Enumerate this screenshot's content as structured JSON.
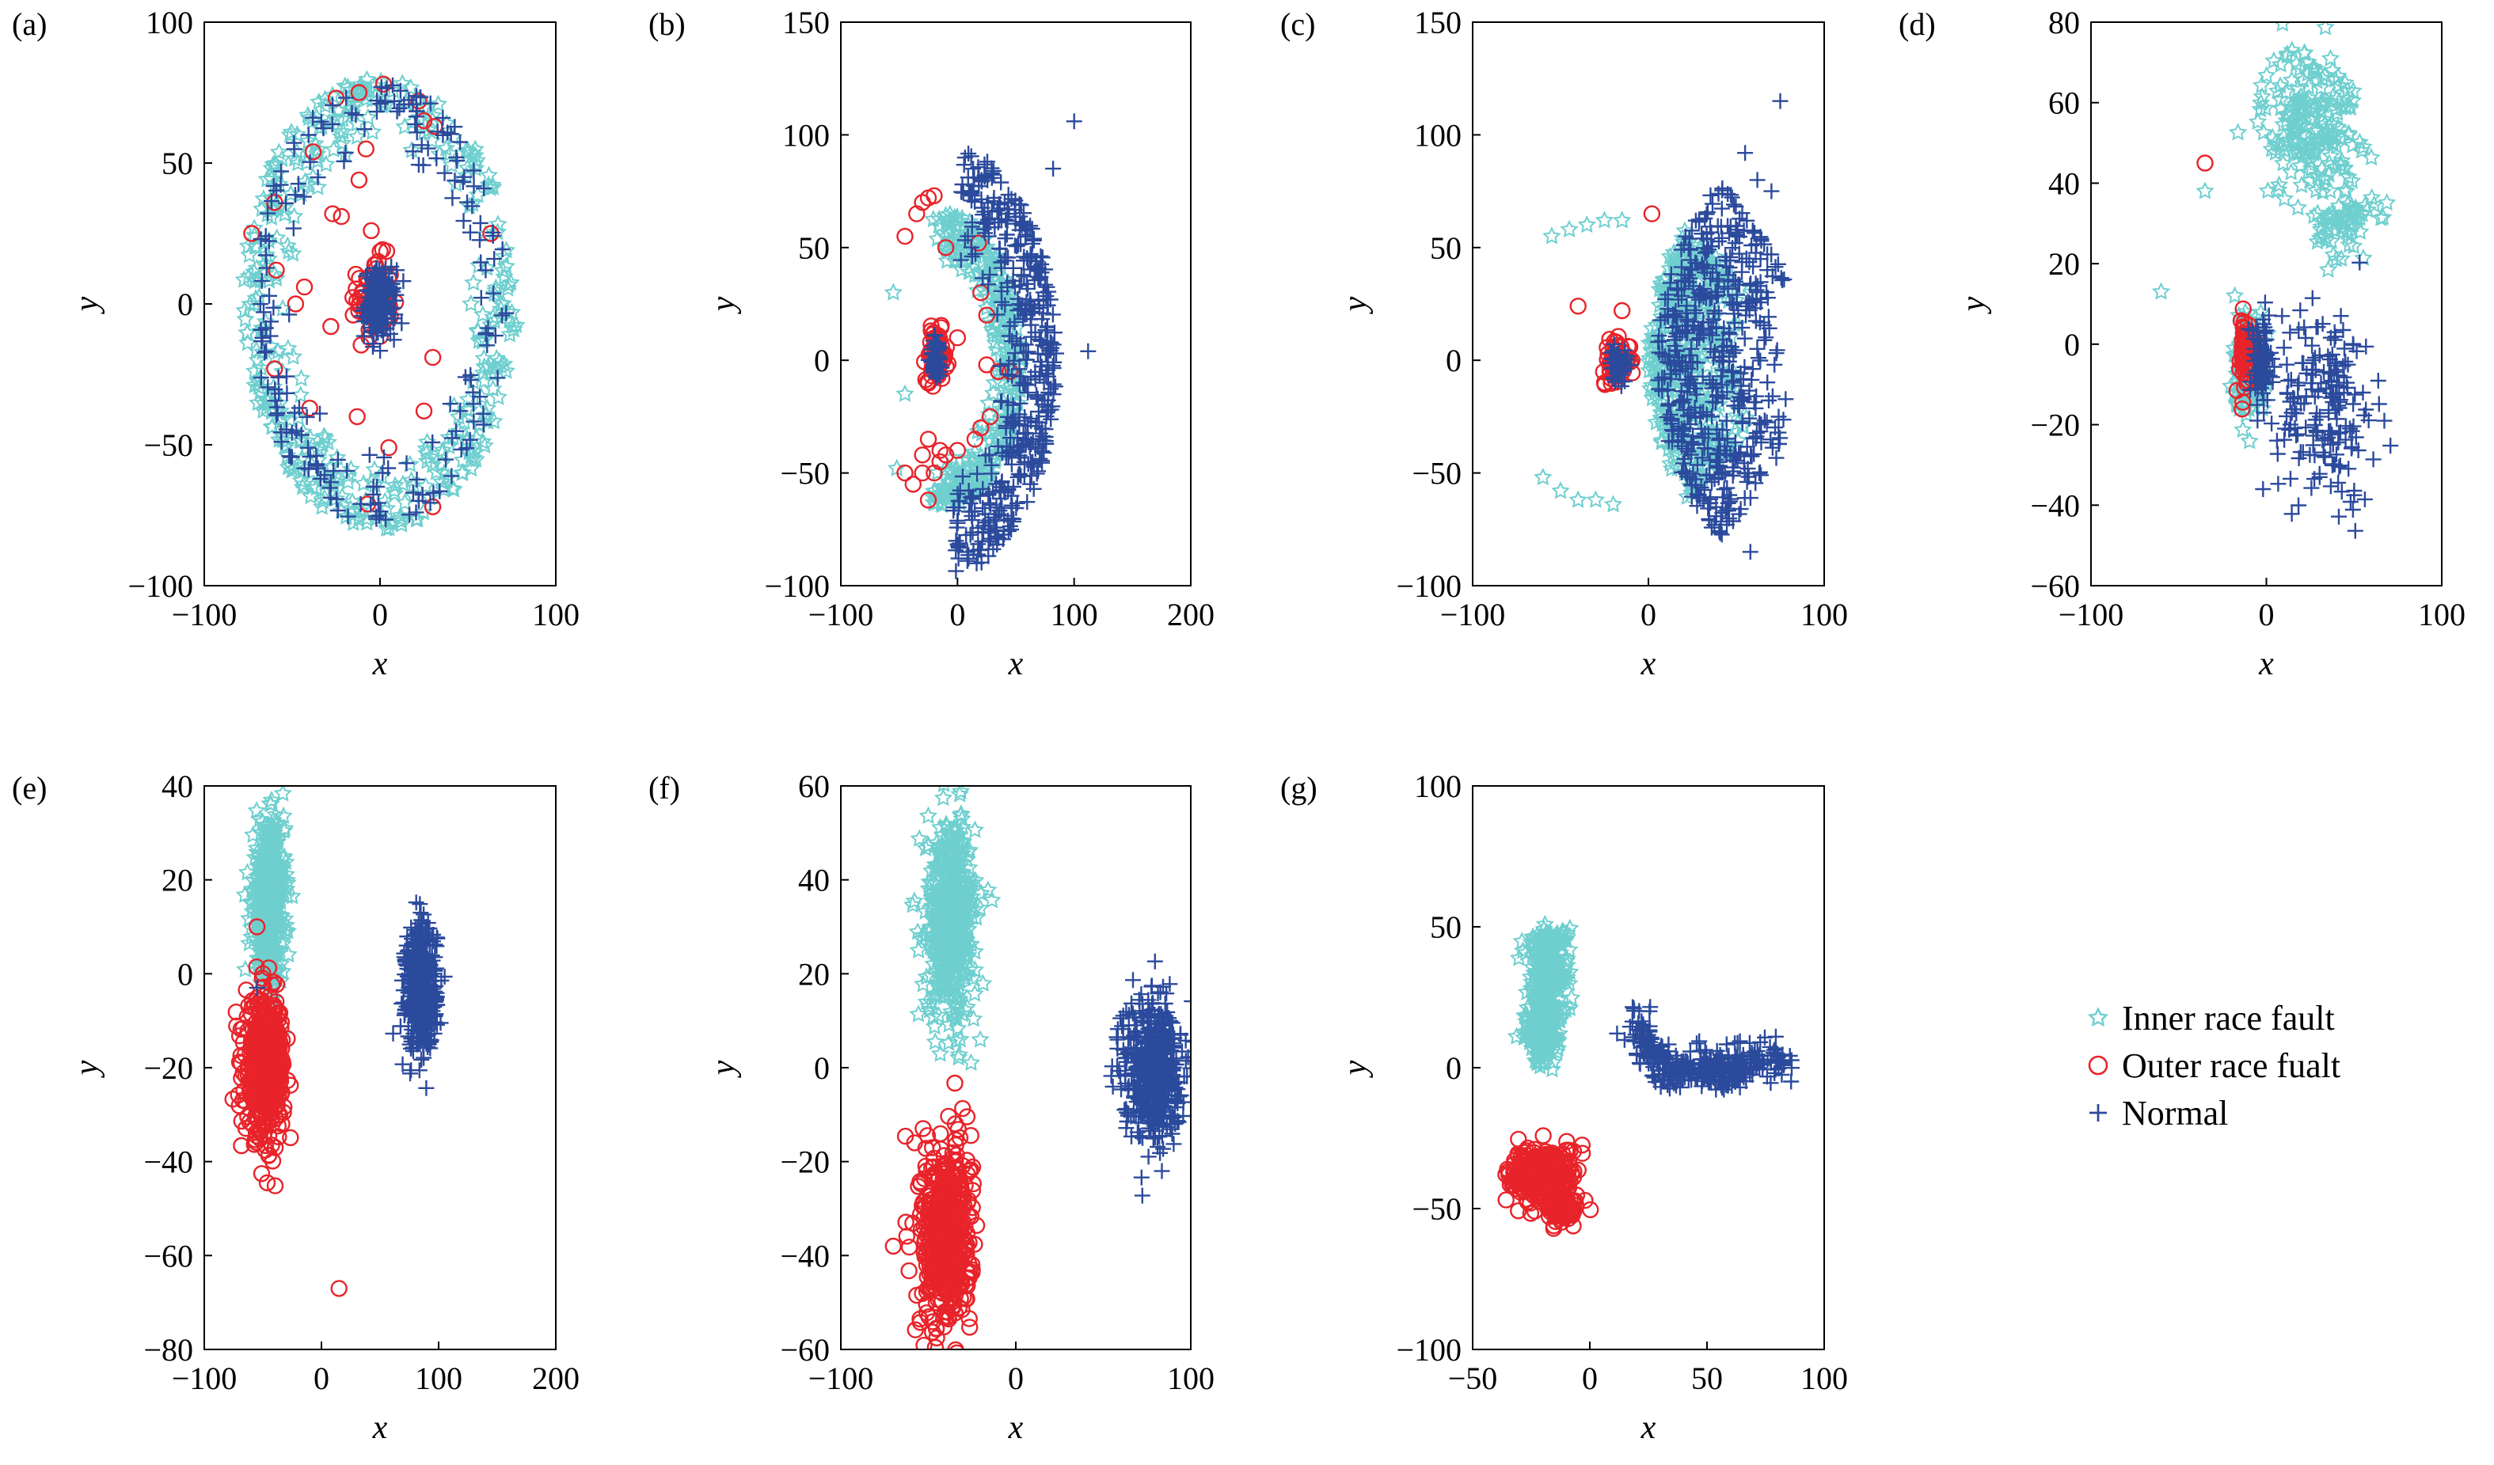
{
  "figure": {
    "legend": {
      "placement": "right, beside panel (g)",
      "entries": [
        {
          "label": "Inner race fault",
          "marker": "star",
          "color": "#6fcfcf"
        },
        {
          "label": "Outer race fualt",
          "marker": "circle",
          "color": "#e8232a"
        },
        {
          "label": "Normal",
          "marker": "plus",
          "color": "#2b4a9c"
        }
      ]
    }
  },
  "chart_data": [
    {
      "type": "scatter",
      "panel_label": "(a)",
      "xlabel": "x",
      "ylabel": "y",
      "xlim": [
        -100,
        100
      ],
      "ylim": [
        -100,
        100
      ],
      "xticks": [
        -100,
        0,
        100
      ],
      "yticks": [
        -100,
        -50,
        0,
        50,
        100
      ],
      "xtick_labels": [
        "−100",
        "0",
        "100"
      ],
      "ytick_labels": [
        "−100",
        "−50",
        "0",
        "50",
        "100"
      ],
      "grid": false,
      "series": [
        {
          "name": "Inner race fault",
          "clusters": [
            {
              "shape": "ring",
              "cx": 0,
              "cy": 0,
              "r_inner_x": 50,
              "r_inner_y": 55,
              "r_outer_x": 78,
              "r_outer_y": 80,
              "n": 420
            }
          ]
        },
        {
          "name": "Normal",
          "clusters": [
            {
              "shape": "ring",
              "cx": 0,
              "cy": 0,
              "r_inner_x": 50,
              "r_inner_y": 52,
              "r_outer_x": 72,
              "r_outer_y": 78,
              "n": 200
            },
            {
              "shape": "ellipse",
              "cx": 0,
              "cy": 0,
              "sx": 8,
              "sy": 11,
              "n": 180
            }
          ]
        },
        {
          "name": "Outer race fualt",
          "clusters": [
            {
              "shape": "ellipse",
              "cx": -3,
              "cy": 2,
              "sx": 9,
              "sy": 13,
              "n": 80
            }
          ],
          "points": [
            [
              -12,
              75
            ],
            [
              2,
              78
            ],
            [
              -25,
              73
            ],
            [
              -8,
              55
            ],
            [
              22,
              72
            ],
            [
              25,
              65
            ],
            [
              31,
              63
            ],
            [
              -38,
              54
            ],
            [
              -12,
              44
            ],
            [
              -60,
              36
            ],
            [
              -27,
              32
            ],
            [
              -22,
              31
            ],
            [
              -5,
              26
            ],
            [
              -73,
              25
            ],
            [
              63,
              25
            ],
            [
              -3,
              14
            ],
            [
              -59,
              12
            ],
            [
              -43,
              6
            ],
            [
              -48,
              0
            ],
            [
              -2,
              -4
            ],
            [
              -28,
              -8
            ],
            [
              -60,
              -23
            ],
            [
              30,
              -19
            ],
            [
              -40,
              -37
            ],
            [
              25,
              -38
            ],
            [
              -13,
              -40
            ],
            [
              5,
              -51
            ],
            [
              -7,
              -71
            ],
            [
              30,
              -72
            ]
          ]
        }
      ]
    },
    {
      "type": "scatter",
      "panel_label": "(b)",
      "xlabel": "x",
      "ylabel": "y",
      "xlim": [
        -100,
        200
      ],
      "ylim": [
        -100,
        150
      ],
      "xticks": [
        -100,
        0,
        100,
        200
      ],
      "yticks": [
        -100,
        -50,
        0,
        50,
        100,
        150
      ],
      "xtick_labels": [
        "−100",
        "0",
        "100",
        "200"
      ],
      "ytick_labels": [
        "−100",
        "−50",
        "0",
        "50",
        "100",
        "150"
      ],
      "grid": false,
      "series": [
        {
          "name": "Inner race fault",
          "clusters": [
            {
              "shape": "crescent",
              "cx": -10,
              "cy": 0,
              "r_inner": 40,
              "r_outer": 65,
              "a0": -100,
              "a1": 100,
              "n": 320
            }
          ],
          "points": [
            [
              -55,
              30
            ],
            [
              -45,
              -15
            ],
            [
              -52,
              -48
            ]
          ]
        },
        {
          "name": "Normal",
          "clusters": [
            {
              "shape": "crescent",
              "cx": -10,
              "cy": 0,
              "r_inner": 45,
              "r_outer": 95,
              "a0": -85,
              "a1": 80,
              "n": 460
            },
            {
              "shape": "ellipse",
              "cx": -18,
              "cy": 1,
              "sx": 5,
              "sy": 9,
              "n": 60
            }
          ],
          "points": [
            [
              100,
              106
            ],
            [
              82,
              85
            ],
            [
              112,
              4
            ]
          ]
        },
        {
          "name": "Outer race fualt",
          "clusters": [
            {
              "shape": "ellipse",
              "cx": -18,
              "cy": 2,
              "sx": 8,
              "sy": 10,
              "n": 70
            }
          ],
          "points": [
            [
              -45,
              55
            ],
            [
              -30,
              70
            ],
            [
              -25,
              72
            ],
            [
              -20,
              73
            ],
            [
              -35,
              65
            ],
            [
              -10,
              50
            ],
            [
              18,
              52
            ],
            [
              20,
              30
            ],
            [
              25,
              20
            ],
            [
              0,
              10
            ],
            [
              25,
              -2
            ],
            [
              35,
              -5
            ],
            [
              45,
              -5
            ],
            [
              28,
              -25
            ],
            [
              20,
              -30
            ],
            [
              15,
              -35
            ],
            [
              0,
              -40
            ],
            [
              -10,
              -42
            ],
            [
              -15,
              -45
            ],
            [
              -20,
              -50
            ],
            [
              -30,
              -50
            ],
            [
              -45,
              -50
            ],
            [
              -38,
              -55
            ],
            [
              -25,
              -62
            ],
            [
              -15,
              -40
            ],
            [
              -25,
              -35
            ],
            [
              -30,
              -42
            ]
          ]
        }
      ]
    },
    {
      "type": "scatter",
      "panel_label": "(c)",
      "xlabel": "x",
      "ylabel": "y",
      "xlim": [
        -100,
        100
      ],
      "ylim": [
        -100,
        150
      ],
      "xticks": [
        -100,
        0,
        100
      ],
      "yticks": [
        -100,
        -50,
        0,
        50,
        100,
        150
      ],
      "xtick_labels": [
        "−100",
        "0",
        "100"
      ],
      "ytick_labels": [
        "−100",
        "−50",
        "0",
        "50",
        "100",
        "150"
      ],
      "grid": false,
      "series": [
        {
          "name": "Inner race fault",
          "clusters": [
            {
              "shape": "crescent",
              "cx": 95,
              "cy": 0,
              "r_inner": 40,
              "r_outer": 95,
              "a0": 140,
              "a1": 220,
              "n": 420
            }
          ],
          "points": [
            [
              -55,
              55
            ],
            [
              -45,
              58
            ],
            [
              -35,
              60
            ],
            [
              -25,
              62
            ],
            [
              -15,
              62
            ],
            [
              -60,
              -52
            ],
            [
              -50,
              -58
            ],
            [
              -40,
              -62
            ],
            [
              -30,
              -62
            ],
            [
              -20,
              -64
            ]
          ]
        },
        {
          "name": "Normal",
          "clusters": [
            {
              "shape": "crescent",
              "cx": 110,
              "cy": 0,
              "r_inner": 35,
              "r_outer": 105,
              "a0": 130,
              "a1": 230,
              "n": 520
            },
            {
              "shape": "ellipse",
              "cx": -17,
              "cy": -2,
              "sx": 5,
              "sy": 7,
              "n": 50
            }
          ],
          "points": [
            [
              75,
              115
            ],
            [
              55,
              92
            ],
            [
              62,
              80
            ],
            [
              70,
              75
            ],
            [
              58,
              -85
            ]
          ]
        },
        {
          "name": "Outer race fualt",
          "clusters": [
            {
              "shape": "ellipse",
              "cx": -18,
              "cy": 0,
              "sx": 7,
              "sy": 8,
              "n": 70
            }
          ],
          "points": [
            [
              -40,
              24
            ],
            [
              -15,
              22
            ],
            [
              2,
              65
            ],
            [
              -25,
              -10
            ]
          ]
        }
      ]
    },
    {
      "type": "scatter",
      "panel_label": "(d)",
      "xlabel": "x",
      "ylabel": "y",
      "xlim": [
        -100,
        100
      ],
      "ylim": [
        -60,
        80
      ],
      "xticks": [
        -100,
        0,
        100
      ],
      "yticks": [
        -60,
        -40,
        -20,
        0,
        20,
        40,
        60,
        80
      ],
      "xtick_labels": [
        "−100",
        "0",
        "100"
      ],
      "ytick_labels": [
        "−60",
        "−40",
        "−20",
        "0",
        "20",
        "40",
        "60",
        "80"
      ],
      "grid": false,
      "series": [
        {
          "name": "Inner race fault",
          "clusters": [
            {
              "shape": "ellipse",
              "cx": 25,
              "cy": 55,
              "sx": 25,
              "sy": 18,
              "n": 200
            },
            {
              "shape": "ellipse",
              "cx": 45,
              "cy": 30,
              "sx": 15,
              "sy": 8,
              "n": 60
            },
            {
              "shape": "ellipse",
              "cx": -10,
              "cy": -5,
              "sx": 8,
              "sy": 12,
              "n": 120
            }
          ],
          "points": [
            [
              -60,
              13
            ],
            [
              -35,
              38
            ],
            [
              -18,
              12
            ],
            [
              -12,
              8
            ]
          ]
        },
        {
          "name": "Normal",
          "clusters": [
            {
              "shape": "ellipse",
              "cx": 35,
              "cy": -15,
              "sx": 25,
              "sy": 22,
              "n": 180
            },
            {
              "shape": "ellipse",
              "cx": -3,
              "cy": -5,
              "sx": 6,
              "sy": 10,
              "n": 100
            }
          ]
        },
        {
          "name": "Outer race fualt",
          "clusters": [
            {
              "shape": "ellipse",
              "cx": -12,
              "cy": -3,
              "sx": 5,
              "sy": 9,
              "n": 70
            }
          ],
          "points": [
            [
              -35,
              45
            ]
          ]
        }
      ]
    },
    {
      "type": "scatter",
      "panel_label": "(e)",
      "xlabel": "x",
      "ylabel": "y",
      "xlim": [
        -100,
        200
      ],
      "ylim": [
        -80,
        40
      ],
      "xticks": [
        -100,
        0,
        100,
        200
      ],
      "yticks": [
        -80,
        -60,
        -40,
        -20,
        0,
        20,
        40
      ],
      "xtick_labels": [
        "−100",
        "0",
        "100",
        "200"
      ],
      "ytick_labels": [
        "−80",
        "−60",
        "−40",
        "−20",
        "0",
        "20",
        "40"
      ],
      "grid": false,
      "series": [
        {
          "name": "Inner race fault",
          "clusters": [
            {
              "shape": "ellipse",
              "cx": -45,
              "cy": 15,
              "sx": 12,
              "sy": 15,
              "n": 500
            }
          ]
        },
        {
          "name": "Outer race fualt",
          "clusters": [
            {
              "shape": "ellipse",
              "cx": -48,
              "cy": -20,
              "sx": 15,
              "sy": 13,
              "n": 500
            }
          ],
          "points": [
            [
              -55,
              10
            ],
            [
              15,
              -67
            ]
          ]
        },
        {
          "name": "Normal",
          "clusters": [
            {
              "shape": "ellipse",
              "cx": 85,
              "cy": -3,
              "sx": 12,
              "sy": 12,
              "n": 500
            }
          ],
          "points": [
            [
              -55,
              -3
            ]
          ]
        }
      ]
    },
    {
      "type": "scatter",
      "panel_label": "(f)",
      "xlabel": "x",
      "ylabel": "y",
      "xlim": [
        -100,
        100
      ],
      "ylim": [
        -60,
        60
      ],
      "xticks": [
        -100,
        0,
        100
      ],
      "yticks": [
        -60,
        -40,
        -20,
        0,
        20,
        40,
        60
      ],
      "xtick_labels": [
        "−100",
        "0",
        "100"
      ],
      "ytick_labels": [
        "−60",
        "−40",
        "−20",
        "0",
        "20",
        "40",
        "60"
      ],
      "grid": false,
      "series": [
        {
          "name": "Inner race fault",
          "clusters": [
            {
              "shape": "ellipse",
              "cx": -37,
              "cy": 32,
              "sx": 13,
              "sy": 19,
              "n": 500
            }
          ]
        },
        {
          "name": "Outer race fualt",
          "clusters": [
            {
              "shape": "ellipse",
              "cx": -40,
              "cy": -36,
              "sx": 13,
              "sy": 18,
              "n": 500
            }
          ],
          "points": [
            [
              -70,
              -38
            ]
          ]
        },
        {
          "name": "Normal",
          "clusters": [
            {
              "shape": "ellipse",
              "cx": 78,
              "cy": 0,
              "sx": 15,
              "sy": 14,
              "n": 500
            }
          ]
        }
      ]
    },
    {
      "type": "scatter",
      "panel_label": "(g)",
      "xlabel": "x",
      "ylabel": "y",
      "xlim": [
        -50,
        100
      ],
      "ylim": [
        -100,
        100
      ],
      "xticks": [
        -50,
        0,
        50,
        100
      ],
      "yticks": [
        -100,
        -50,
        0,
        50,
        100
      ],
      "xtick_labels": [
        "−50",
        "0",
        "50",
        "100"
      ],
      "ytick_labels": [
        "−100",
        "−50",
        "0",
        "50",
        "100"
      ],
      "grid": false,
      "series": [
        {
          "name": "Inner race fault",
          "clusters": [
            {
              "shape": "ellipse",
              "cx": -18,
              "cy": 35,
              "sx": 8,
              "sy": 15,
              "n": 250
            },
            {
              "shape": "ellipse",
              "cx": -20,
              "cy": 12,
              "sx": 7,
              "sy": 10,
              "n": 150
            }
          ]
        },
        {
          "name": "Outer race fualt",
          "clusters": [
            {
              "shape": "ellipse",
              "cx": -20,
              "cy": -38,
              "sx": 13,
              "sy": 9,
              "n": 300
            },
            {
              "shape": "ellipse",
              "cx": -12,
              "cy": -50,
              "sx": 7,
              "sy": 5,
              "n": 100
            }
          ]
        },
        {
          "name": "Normal",
          "clusters": [
            {
              "shape": "polyline",
              "pts": [
                [
                  20,
                  15
                ],
                [
                  25,
                  5
                ],
                [
                  35,
                  -2
                ],
                [
                  50,
                  0
                ],
                [
                  60,
                  -2
                ],
                [
                  70,
                  3
                ],
                [
                  85,
                  2
                ]
              ],
              "spread": 3,
              "n": 380
            }
          ]
        }
      ]
    }
  ]
}
